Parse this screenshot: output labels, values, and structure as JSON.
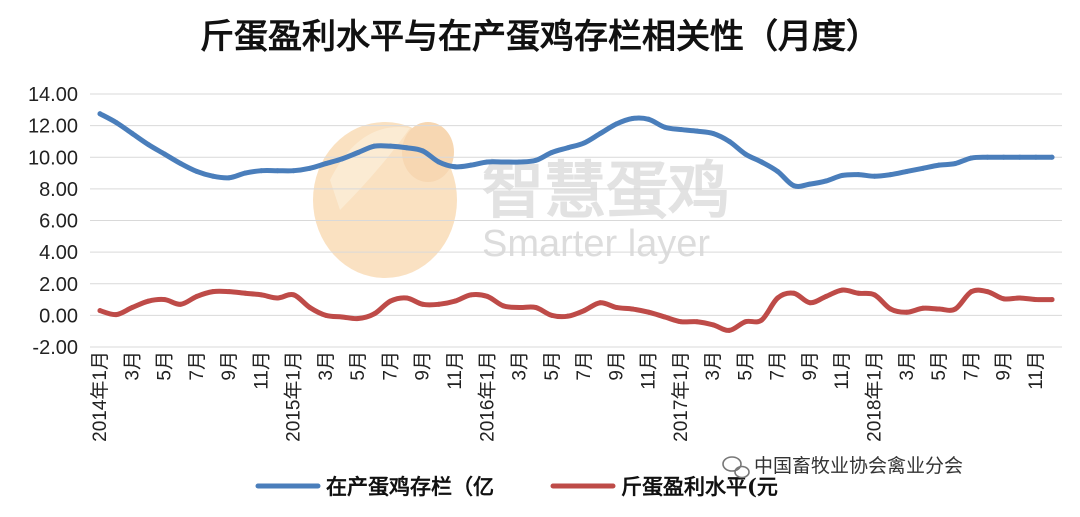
{
  "chart_data": {
    "type": "line",
    "title": "斤蛋盈利水平与在产蛋鸡存栏相关性（月度）",
    "xlabel": "",
    "ylabel": "",
    "ylim": [
      -2,
      14
    ],
    "yticks": [
      "-2.00",
      "0.00",
      "2.00",
      "4.00",
      "6.00",
      "8.00",
      "10.00",
      "12.00",
      "14.00"
    ],
    "grid": true,
    "legend_position": "bottom",
    "categories": [
      "2014年1月",
      "2月",
      "3月",
      "4月",
      "5月",
      "6月",
      "7月",
      "8月",
      "9月",
      "10月",
      "11月",
      "12月",
      "2015年1月",
      "2月",
      "3月",
      "4月",
      "5月",
      "6月",
      "7月",
      "8月",
      "9月",
      "10月",
      "11月",
      "12月",
      "2016年1月",
      "2月",
      "3月",
      "4月",
      "5月",
      "6月",
      "7月",
      "8月",
      "9月",
      "10月",
      "11月",
      "12月",
      "2017年1月",
      "2月",
      "3月",
      "4月",
      "5月",
      "6月",
      "7月",
      "8月",
      "9月",
      "10月",
      "11月",
      "12月",
      "2018年1月",
      "2月",
      "3月",
      "4月",
      "5月",
      "6月",
      "7月",
      "8月",
      "9月",
      "10月",
      "11月",
      "12月"
    ],
    "tick_labels": [
      "2014年1月",
      "",
      "3月",
      "",
      "5月",
      "",
      "7月",
      "",
      "9月",
      "",
      "11月",
      "",
      "2015年1月",
      "",
      "3月",
      "",
      "5月",
      "",
      "7月",
      "",
      "9月",
      "",
      "11月",
      "",
      "2016年1月",
      "",
      "3月",
      "",
      "5月",
      "",
      "7月",
      "",
      "9月",
      "",
      "11月",
      "",
      "2017年1月",
      "",
      "3月",
      "",
      "5月",
      "",
      "7月",
      "",
      "9月",
      "",
      "11月",
      "",
      "2018年1月",
      "",
      "3月",
      "",
      "5月",
      "",
      "7月",
      "",
      "9月",
      "",
      "11月",
      ""
    ],
    "series": [
      {
        "name": "在产蛋鸡存栏（亿",
        "color": "#4a7ebb",
        "values": [
          12.75,
          12.2,
          11.5,
          10.8,
          10.2,
          9.6,
          9.1,
          8.8,
          8.7,
          9.0,
          9.15,
          9.15,
          9.15,
          9.3,
          9.6,
          9.9,
          10.3,
          10.7,
          10.7,
          10.6,
          10.4,
          9.7,
          9.4,
          9.5,
          9.7,
          9.7,
          9.7,
          9.8,
          10.3,
          10.6,
          10.9,
          11.5,
          12.1,
          12.45,
          12.4,
          11.9,
          11.75,
          11.65,
          11.5,
          11.0,
          10.2,
          9.7,
          9.1,
          8.2,
          8.3,
          8.5,
          8.85,
          8.9,
          8.8,
          8.9,
          9.1,
          9.3,
          9.5,
          9.6,
          9.95,
          10.0,
          10.0,
          10.0,
          10.0,
          10.0
        ]
      },
      {
        "name": "斤蛋盈利水平(元",
        "color": "#be4b48",
        "values": [
          0.3,
          0.05,
          0.5,
          0.9,
          1.0,
          0.7,
          1.2,
          1.5,
          1.5,
          1.4,
          1.3,
          1.1,
          1.3,
          0.5,
          0.0,
          -0.1,
          -0.2,
          0.1,
          0.9,
          1.1,
          0.7,
          0.7,
          0.9,
          1.3,
          1.2,
          0.6,
          0.5,
          0.5,
          0.0,
          -0.05,
          0.3,
          0.8,
          0.5,
          0.4,
          0.2,
          -0.1,
          -0.4,
          -0.4,
          -0.6,
          -0.95,
          -0.4,
          -0.3,
          1.1,
          1.4,
          0.8,
          1.2,
          1.6,
          1.4,
          1.3,
          0.4,
          0.2,
          0.45,
          0.4,
          0.4,
          1.5,
          1.5,
          1.05,
          1.1,
          1.0,
          1.0
        ]
      }
    ]
  },
  "watermark": {
    "chinese": "智慧蛋鸡",
    "english": "Smarter layer"
  },
  "source_label": "中国畜牧业协会禽业分会"
}
